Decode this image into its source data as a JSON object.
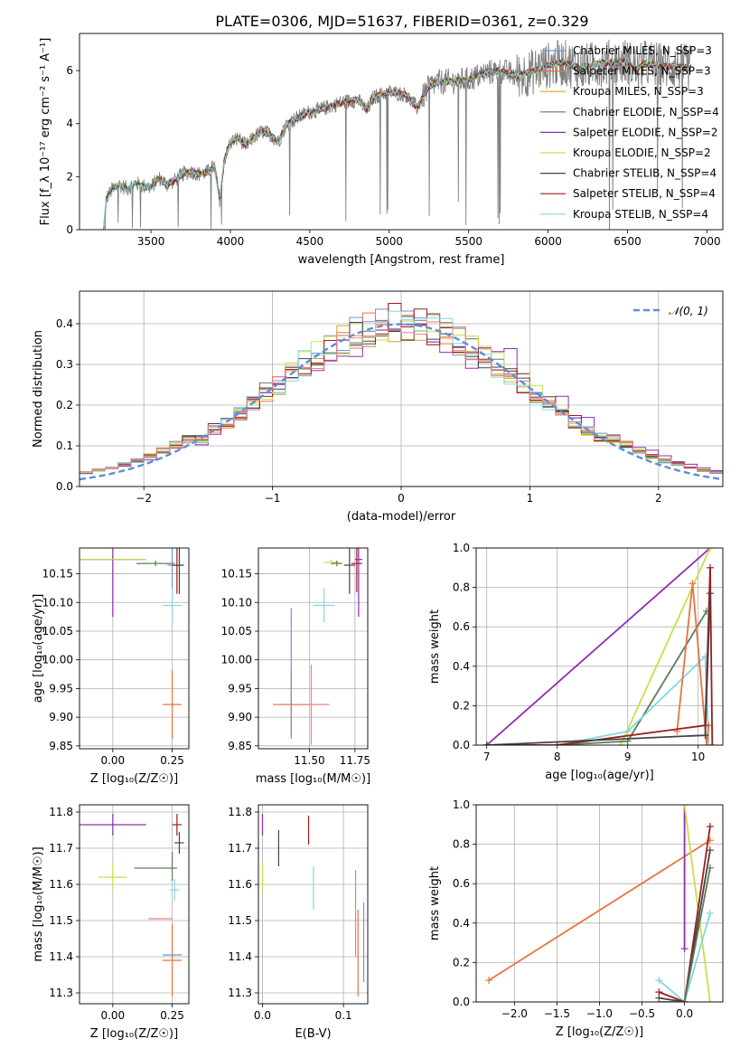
{
  "figure": {
    "title": "PLATE=0306, MJD=51637, FIBERID=0361, z=0.329"
  },
  "colors": {
    "data": "#808080",
    "chabrier_miles": "#6f93d9",
    "salpeter_miles": "#e8743b",
    "kroupa_miles": "#e0a01c",
    "chabrier_elodie": "#5b7d5b",
    "salpeter_elodie": "#8e2bb5",
    "kroupa_elodie": "#c8e04a",
    "chabrier_stelib": "#444444",
    "salpeter_stelib": "#a01b1b",
    "kroupa_stelib": "#80d8e0",
    "extra_pink": "#f08080",
    "gauss": "#5b8fd6",
    "grid": "#b0b0b0"
  },
  "chart_data": [
    {
      "id": "spectrum",
      "type": "line",
      "xlabel": "wavelength [Angstrom, rest frame]",
      "ylabel": "Flux [f_λ 10⁻¹⁷ erg cm⁻² s⁻¹ A⁻¹]",
      "xlim": [
        3050,
        7100
      ],
      "ylim": [
        0,
        7.4
      ],
      "xticks": [
        3500,
        4000,
        4500,
        5000,
        5500,
        6000,
        6500,
        7000
      ],
      "yticks": [
        0,
        2,
        4,
        6
      ],
      "grid": false,
      "legend_position": "top-right",
      "legend": [
        {
          "label": "Chabrier MILES, N_SSP=3",
          "color": "chabrier_miles"
        },
        {
          "label": "Salpeter MILES, N_SSP=3",
          "color": "salpeter_miles"
        },
        {
          "label": "Kroupa MILES, N_SSP=3",
          "color": "kroupa_miles"
        },
        {
          "label": "Chabrier ELODIE, N_SSP=4",
          "color": "chabrier_elodie"
        },
        {
          "label": "Salpeter ELODIE, N_SSP=2",
          "color": "salpeter_elodie"
        },
        {
          "label": "Kroupa ELODIE, N_SSP=2",
          "color": "kroupa_elodie"
        },
        {
          "label": "Chabrier STELIB, N_SSP=4",
          "color": "chabrier_stelib"
        },
        {
          "label": "Salpeter STELIB, N_SSP=4",
          "color": "salpeter_stelib"
        },
        {
          "label": "Kroupa STELIB, N_SSP=4",
          "color": "kroupa_stelib"
        }
      ],
      "model_envelope": {
        "x": [
          3200,
          3220,
          3260,
          3300,
          3350,
          3400,
          3450,
          3500,
          3550,
          3600,
          3650,
          3700,
          3750,
          3800,
          3850,
          3900,
          3933,
          3960,
          4000,
          4050,
          4100,
          4150,
          4200,
          4250,
          4300,
          4350,
          4400,
          4450,
          4500,
          4550,
          4600,
          4700,
          4800,
          4861,
          4900,
          5000,
          5100,
          5175,
          5250,
          5300,
          5400,
          5500,
          5600,
          5700,
          5800,
          5900,
          6000,
          6100,
          6200,
          6300,
          6400,
          6500,
          6563,
          6600,
          6700,
          6800,
          6900
        ],
        "y": [
          0,
          1.2,
          1.55,
          1.7,
          1.55,
          1.75,
          1.65,
          1.6,
          1.95,
          1.7,
          1.85,
          2.1,
          2.2,
          2.1,
          2.15,
          2.4,
          1.1,
          2.6,
          3.3,
          3.45,
          3.15,
          3.5,
          3.7,
          3.6,
          3.3,
          3.95,
          4.15,
          4.3,
          4.45,
          4.5,
          4.6,
          4.8,
          4.9,
          4.5,
          5.0,
          5.2,
          5.1,
          4.6,
          5.4,
          5.55,
          5.6,
          5.65,
          5.9,
          6.0,
          5.8,
          5.95,
          6.2,
          6.3,
          6.1,
          6.25,
          6.3,
          6.35,
          6.0,
          6.3,
          6.2,
          6.15,
          6.1
        ]
      }
    },
    {
      "id": "residuals",
      "type": "step",
      "xlabel": "(data-model)/error",
      "ylabel": "Normed distribution",
      "xlim": [
        -2.5,
        2.5
      ],
      "ylim": [
        0,
        0.48
      ],
      "xticks": [
        -2,
        -1,
        0,
        1,
        2
      ],
      "yticks": [
        0.0,
        0.1,
        0.2,
        0.3,
        0.4
      ],
      "grid": true,
      "legend_position": "top-right",
      "legend": [
        {
          "label": "𝒩(0, 1)",
          "color": "gauss",
          "style": "dashed"
        }
      ]
    },
    {
      "id": "age-vs-z",
      "type": "errorbar",
      "xlabel": "Z [log₁₀(Z/Z☉)]",
      "ylabel": "age  [log₁₀(age/yr)]",
      "xlim": [
        -0.14,
        0.32
      ],
      "ylim": [
        9.845,
        10.195
      ],
      "xticks": [
        0.0,
        0.25
      ],
      "yticks": [
        9.85,
        9.9,
        9.95,
        10.0,
        10.05,
        10.1,
        10.15
      ],
      "grid": true,
      "points": [
        {
          "x": 0.0,
          "y": 10.175,
          "xerr": 0.14,
          "yerr": 0.1,
          "color": "salpeter_elodie"
        },
        {
          "x": 0.0,
          "y": 10.175,
          "xerr": 0.14,
          "yerr": 0.0,
          "color": "kroupa_elodie"
        },
        {
          "x": 0.18,
          "y": 10.168,
          "xerr": 0.08,
          "yerr": 0.005,
          "color": "chabrier_elodie"
        },
        {
          "x": 0.25,
          "y": 9.922,
          "xerr": 0.04,
          "yerr": 0.06,
          "color": "salpeter_miles"
        },
        {
          "x": 0.25,
          "y": 10.165,
          "xerr": 0.02,
          "yerr": 0.04,
          "color": "chabrier_miles"
        },
        {
          "x": 0.25,
          "y": 10.095,
          "xerr": 0.04,
          "yerr": 0.03,
          "color": "kroupa_stelib"
        },
        {
          "x": 0.27,
          "y": 10.165,
          "xerr": 0.02,
          "yerr": 0.05,
          "color": "salpeter_stelib"
        },
        {
          "x": 0.28,
          "y": 10.165,
          "xerr": 0.02,
          "yerr": 0.05,
          "color": "chabrier_stelib"
        }
      ]
    },
    {
      "id": "age-vs-mass",
      "type": "errorbar",
      "xlabel": "mass [log₁₀(M/M☉)]",
      "ylabel": "",
      "xlim": [
        11.22,
        11.82
      ],
      "ylim": [
        9.845,
        10.195
      ],
      "xticks": [
        11.5,
        11.75
      ],
      "yticks": [
        9.85,
        9.9,
        9.95,
        10.0,
        10.05,
        10.1,
        10.15
      ],
      "grid": true,
      "points": [
        {
          "x": 11.4,
          "y": 9.922,
          "xerr": 0.1,
          "yerr": 0.06,
          "color": "salpeter_miles"
        },
        {
          "x": 11.4,
          "y": 9.98,
          "xerr": 0.0,
          "yerr": 0.11,
          "color": "chabrier_miles"
        },
        {
          "x": 11.51,
          "y": 9.922,
          "xerr": 0.1,
          "yerr": 0.07,
          "color": "extra_pink"
        },
        {
          "x": 11.58,
          "y": 10.095,
          "xerr": 0.06,
          "yerr": 0.03,
          "color": "kroupa_stelib"
        },
        {
          "x": 11.62,
          "y": 10.17,
          "xerr": 0.04,
          "yerr": 0.005,
          "color": "kroupa_elodie"
        },
        {
          "x": 11.65,
          "y": 10.168,
          "xerr": 0.03,
          "yerr": 0.005,
          "color": "chabrier_elodie"
        },
        {
          "x": 11.72,
          "y": 10.165,
          "xerr": 0.03,
          "yerr": 0.05,
          "color": "chabrier_stelib"
        },
        {
          "x": 11.76,
          "y": 10.168,
          "xerr": 0.03,
          "yerr": 0.05,
          "color": "salpeter_stelib"
        },
        {
          "x": 11.77,
          "y": 10.175,
          "xerr": 0.02,
          "yerr": 0.1,
          "color": "salpeter_elodie"
        }
      ]
    },
    {
      "id": "weight-vs-age",
      "type": "line",
      "xlabel": "age  [log₁₀(age/yr)]",
      "ylabel": "mass weight",
      "xlim": [
        6.85,
        10.35
      ],
      "ylim": [
        0.0,
        1.0
      ],
      "xticks": [
        7,
        8,
        9,
        10
      ],
      "yticks": [
        0.0,
        0.2,
        0.4,
        0.6,
        0.8,
        1.0
      ],
      "grid": true,
      "series": [
        {
          "color": "salpeter_elodie",
          "x": [
            7.0,
            10.17
          ],
          "y": [
            0.0,
            1.0
          ]
        },
        {
          "color": "kroupa_elodie",
          "x": [
            8.9,
            10.17
          ],
          "y": [
            0.0,
            1.0
          ]
        },
        {
          "color": "chabrier_elodie",
          "x": [
            7.0,
            8.0,
            9.0,
            10.12
          ],
          "y": [
            0.0,
            0.0,
            0.02,
            0.68
          ]
        },
        {
          "color": "kroupa_stelib",
          "x": [
            7.0,
            8.0,
            9.0,
            10.1,
            10.15
          ],
          "y": [
            0.0,
            0.0,
            0.07,
            0.45,
            0.0
          ]
        },
        {
          "color": "salpeter_miles",
          "x": [
            9.7,
            9.92,
            10.12,
            10.15
          ],
          "y": [
            0.07,
            0.82,
            0.0,
            0.1
          ]
        },
        {
          "color": "salpeter_stelib",
          "x": [
            7.0,
            8.0,
            10.1,
            10.17,
            10.2
          ],
          "y": [
            0.0,
            0.0,
            0.1,
            0.9,
            0.0
          ]
        },
        {
          "color": "chabrier_stelib",
          "x": [
            7.0,
            10.1,
            10.17
          ],
          "y": [
            0.0,
            0.05,
            0.77
          ]
        }
      ]
    },
    {
      "id": "mass-vs-z",
      "type": "errorbar",
      "xlabel": "Z [log₁₀(Z/Z☉)]",
      "ylabel": "mass [log₁₀(M/M☉)]",
      "xlim": [
        -0.14,
        0.32
      ],
      "ylim": [
        11.27,
        11.82
      ],
      "xticks": [
        0.0,
        0.25
      ],
      "yticks": [
        11.3,
        11.4,
        11.5,
        11.6,
        11.7,
        11.8
      ],
      "grid": true,
      "points": [
        {
          "x": 0.0,
          "y": 11.765,
          "xerr": 0.14,
          "yerr": 0.03,
          "color": "salpeter_elodie"
        },
        {
          "x": 0.0,
          "y": 11.62,
          "xerr": 0.06,
          "yerr": 0.04,
          "color": "kroupa_elodie"
        },
        {
          "x": 0.18,
          "y": 11.645,
          "xerr": 0.09,
          "yerr": 0.0,
          "color": "chabrier_elodie"
        },
        {
          "x": 0.2,
          "y": 11.505,
          "xerr": 0.05,
          "yerr": 0.0,
          "color": "extra_pink"
        },
        {
          "x": 0.25,
          "y": 11.39,
          "xerr": 0.04,
          "yerr": 0.1,
          "color": "salpeter_miles"
        },
        {
          "x": 0.25,
          "y": 11.405,
          "xerr": 0.04,
          "yerr": 0.0,
          "color": "chabrier_miles"
        },
        {
          "x": 0.25,
          "y": 11.65,
          "xerr": 0.0,
          "yerr": 0.04,
          "color": "chabrier_elodie"
        },
        {
          "x": 0.26,
          "y": 11.585,
          "xerr": 0.02,
          "yerr": 0.03,
          "color": "kroupa_stelib"
        },
        {
          "x": 0.27,
          "y": 11.765,
          "xerr": 0.02,
          "yerr": 0.03,
          "color": "salpeter_stelib"
        },
        {
          "x": 0.28,
          "y": 11.715,
          "xerr": 0.02,
          "yerr": 0.03,
          "color": "chabrier_stelib"
        }
      ]
    },
    {
      "id": "mass-vs-ebv",
      "type": "errorbar",
      "xlabel": "E(B-V)",
      "ylabel": "",
      "xlim": [
        -0.005,
        0.13
      ],
      "ylim": [
        11.27,
        11.82
      ],
      "xticks": [
        0.0,
        0.1
      ],
      "yticks": [
        11.3,
        11.4,
        11.5,
        11.6,
        11.7,
        11.8
      ],
      "grid": true,
      "points": [
        {
          "x": 0.0,
          "y": 11.765,
          "xerr": 0.0,
          "yerr": 0.03,
          "color": "salpeter_elodie"
        },
        {
          "x": 0.0,
          "y": 11.62,
          "xerr": 0.0,
          "yerr": 0.04,
          "color": "kroupa_elodie"
        },
        {
          "x": 0.02,
          "y": 11.7,
          "xerr": 0.0,
          "yerr": 0.05,
          "color": "chabrier_stelib"
        },
        {
          "x": 0.057,
          "y": 11.75,
          "xerr": 0.0,
          "yerr": 0.04,
          "color": "salpeter_stelib"
        },
        {
          "x": 0.063,
          "y": 11.59,
          "xerr": 0.0,
          "yerr": 0.06,
          "color": "kroupa_stelib"
        },
        {
          "x": 0.115,
          "y": 11.52,
          "xerr": 0.0,
          "yerr": 0.12,
          "color": "extra_pink"
        },
        {
          "x": 0.118,
          "y": 11.41,
          "xerr": 0.0,
          "yerr": 0.12,
          "color": "salpeter_miles"
        },
        {
          "x": 0.125,
          "y": 11.44,
          "xerr": 0.0,
          "yerr": 0.11,
          "color": "chabrier_miles"
        }
      ]
    },
    {
      "id": "weight-vs-z",
      "type": "line",
      "xlabel": "Z [log₁₀(Z/Z☉)]",
      "ylabel": "mass weight",
      "xlim": [
        -2.45,
        0.45
      ],
      "ylim": [
        0.0,
        1.0
      ],
      "xticks": [
        -2.0,
        -1.5,
        -1.0,
        -0.5,
        0.0
      ],
      "yticks": [
        0.0,
        0.2,
        0.4,
        0.6,
        0.8,
        1.0
      ],
      "grid": true,
      "series": [
        {
          "color": "salpeter_miles",
          "x": [
            -2.3,
            0.3
          ],
          "y": [
            0.11,
            0.82
          ]
        },
        {
          "color": "salpeter_elodie",
          "x": [
            -0.0,
            0.0
          ],
          "y": [
            0.27,
            1.0
          ]
        },
        {
          "color": "kroupa_elodie",
          "x": [
            0.0,
            0.3
          ],
          "y": [
            1.0,
            0.0
          ]
        },
        {
          "color": "kroupa_stelib",
          "x": [
            -0.3,
            0.0,
            0.3
          ],
          "y": [
            0.11,
            0.0,
            0.45
          ]
        },
        {
          "color": "salpeter_stelib",
          "x": [
            -0.3,
            0.0,
            0.3
          ],
          "y": [
            0.05,
            0.0,
            0.89
          ]
        },
        {
          "color": "chabrier_stelib",
          "x": [
            -0.3,
            0.0,
            0.3
          ],
          "y": [
            0.02,
            0.0,
            0.77
          ]
        },
        {
          "color": "chabrier_elodie",
          "x": [
            -0.3,
            0.0,
            0.3
          ],
          "y": [
            0.0,
            0.0,
            0.68
          ]
        }
      ]
    }
  ]
}
